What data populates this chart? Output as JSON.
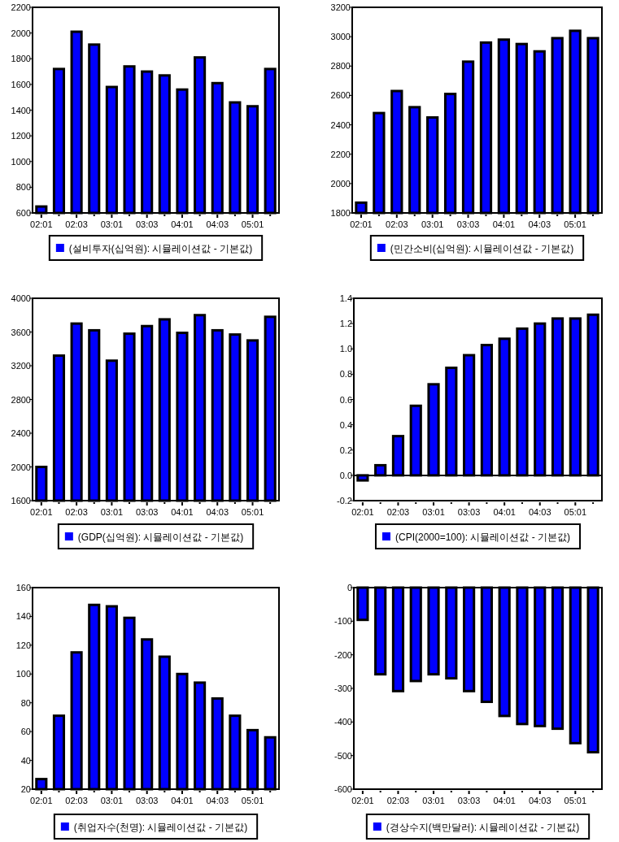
{
  "chart_data": [
    {
      "type": "bar",
      "categories": [
        "02:01",
        null,
        "02:03",
        null,
        "03:01",
        null,
        "03:03",
        null,
        "04:01",
        null,
        "04:03",
        null,
        "05:01",
        null
      ],
      "series": [
        {
          "name": "(설비투자(십억원): 시뮬레이션값 - 기본값)",
          "color": "#0000ff",
          "values": [
            650,
            1720,
            2010,
            1910,
            1580,
            1740,
            1700,
            1670,
            1560,
            1810,
            1610,
            1460,
            1430,
            1720
          ]
        }
      ],
      "ylim": [
        600,
        2200
      ],
      "yticks": [
        600,
        800,
        1000,
        1200,
        1400,
        1600,
        1800,
        2000,
        2200
      ],
      "legend": "bottom"
    },
    {
      "type": "bar",
      "categories": [
        "02:01",
        null,
        "02:03",
        null,
        "03:01",
        null,
        "03:03",
        null,
        "04:01",
        null,
        "04:03",
        null,
        "05:01",
        null
      ],
      "series": [
        {
          "name": "(민간소비(십억원): 시뮬레이션값 - 기본값)",
          "color": "#0000ff",
          "values": [
            1870,
            2480,
            2630,
            2520,
            2450,
            2610,
            2830,
            2960,
            2980,
            2950,
            2900,
            2990,
            3040,
            2990
          ]
        }
      ],
      "ylim": [
        1800,
        3200
      ],
      "yticks": [
        1800,
        2000,
        2200,
        2400,
        2600,
        2800,
        3000,
        3200
      ],
      "legend": "bottom"
    },
    {
      "type": "bar",
      "categories": [
        "02:01",
        null,
        "02:03",
        null,
        "03:01",
        null,
        "03:03",
        null,
        "04:01",
        null,
        "04:03",
        null,
        "05:01",
        null
      ],
      "series": [
        {
          "name": "(GDP(십억원): 시뮬레이션값 - 기본값)",
          "color": "#0000ff",
          "values": [
            2000,
            3320,
            3700,
            3620,
            3260,
            3580,
            3670,
            3750,
            3590,
            3800,
            3620,
            3570,
            3500,
            3780
          ]
        }
      ],
      "ylim": [
        1600,
        4000
      ],
      "yticks": [
        1600,
        2000,
        2400,
        2800,
        3200,
        3600,
        4000
      ],
      "legend": "bottom"
    },
    {
      "type": "bar",
      "categories": [
        "02:01",
        null,
        "02:03",
        null,
        "03:01",
        null,
        "03:03",
        null,
        "04:01",
        null,
        "04:03",
        null,
        "05:01",
        null
      ],
      "series": [
        {
          "name": "(CPI(2000=100): 시뮬레이션값 - 기본값)",
          "color": "#0000ff",
          "values": [
            -0.04,
            0.08,
            0.31,
            0.55,
            0.72,
            0.85,
            0.95,
            1.03,
            1.08,
            1.16,
            1.2,
            1.24,
            1.24,
            1.27
          ]
        }
      ],
      "ylim": [
        -0.2,
        1.4
      ],
      "yticks": [
        {
          "value": -0.2,
          "label": "-0.2"
        },
        {
          "value": 0,
          "label": "0.0"
        },
        {
          "value": 0.2,
          "label": "0.2"
        },
        {
          "value": 0.4,
          "label": "0.4"
        },
        {
          "value": 0.6,
          "label": "0.6"
        },
        {
          "value": 0.8,
          "label": "0.8"
        },
        {
          "value": 1,
          "label": "1.0"
        },
        {
          "value": 1.2,
          "label": "1.2"
        },
        {
          "value": 1.4,
          "label": "1.4"
        }
      ],
      "legend": "bottom"
    },
    {
      "type": "bar",
      "categories": [
        "02:01",
        null,
        "02:03",
        null,
        "03:01",
        null,
        "03:03",
        null,
        "04:01",
        null,
        "04:03",
        null,
        "05:01",
        null
      ],
      "series": [
        {
          "name": "(취업자수(천명): 시뮬레이션값 - 기본값)",
          "color": "#0000ff",
          "values": [
            27,
            71,
            115,
            148,
            147,
            139,
            124,
            112,
            100,
            94,
            83,
            71,
            61,
            56
          ]
        }
      ],
      "ylim": [
        20,
        160
      ],
      "yticks": [
        20,
        40,
        60,
        80,
        100,
        120,
        140,
        160
      ],
      "legend": "bottom"
    },
    {
      "type": "bar",
      "categories": [
        "02:01",
        null,
        "02:03",
        null,
        "03:01",
        null,
        "03:03",
        null,
        "04:01",
        null,
        "04:03",
        null,
        "05:01",
        null
      ],
      "series": [
        {
          "name": "(경상수지(백만달러): 시뮬레이션값 - 기본값)",
          "color": "#0000ff",
          "values": [
            -96,
            -258,
            -308,
            -278,
            -258,
            -270,
            -308,
            -340,
            -382,
            -406,
            -412,
            -420,
            -463,
            -490
          ]
        }
      ],
      "ylim": [
        -600,
        0
      ],
      "yticks": [
        -600,
        -500,
        -400,
        -300,
        -200,
        -100,
        0
      ],
      "legend": "bottom"
    }
  ]
}
